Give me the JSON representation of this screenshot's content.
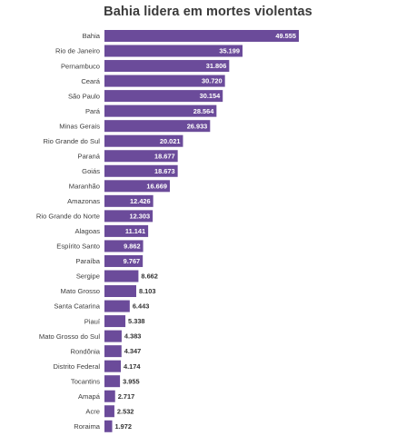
{
  "chart_data": {
    "type": "bar",
    "orientation": "horizontal",
    "title": "Bahia lidera em mortes violentas",
    "categories": [
      "Bahia",
      "Rio de Janeiro",
      "Pernambuco",
      "Ceará",
      "São Paulo",
      "Pará",
      "Minas Gerais",
      "Rio Grande do Sul",
      "Paraná",
      "Goiás",
      "Maranhão",
      "Amazonas",
      "Rio Grande do Norte",
      "Alagoas",
      "Espírito Santo",
      "Paraíba",
      "Sergipe",
      "Mato Grosso",
      "Santa Catarina",
      "Piauí",
      "Mato Grosso do Sul",
      "Rondônia",
      "Distrito Federal",
      "Tocantins",
      "Amapá",
      "Acre",
      "Roraima"
    ],
    "values": [
      49555,
      35199,
      31806,
      30720,
      30154,
      28564,
      26933,
      20021,
      18677,
      18673,
      16669,
      12426,
      12303,
      11141,
      9862,
      9767,
      8662,
      8103,
      6443,
      5338,
      4383,
      4347,
      4174,
      3955,
      2717,
      2532,
      1972
    ],
    "value_labels": [
      "49.555",
      "35.199",
      "31.806",
      "30.720",
      "30.154",
      "28.564",
      "26.933",
      "20.021",
      "18.677",
      "18.673",
      "16.669",
      "12.426",
      "12.303",
      "11.141",
      "9.862",
      "9.767",
      "8.662",
      "8.103",
      "6.443",
      "5.338",
      "4.383",
      "4.347",
      "4.174",
      "3.955",
      "2.717",
      "2.532",
      "1.972"
    ],
    "xlim": [
      0,
      49555
    ],
    "grid": false,
    "legend": "none",
    "colors": {
      "bar": "#6b4b9a",
      "label_inside": "#ffffff",
      "label_outside": "#333333",
      "category_text": "#3d3d3d",
      "title": "#3a3a3a"
    }
  }
}
